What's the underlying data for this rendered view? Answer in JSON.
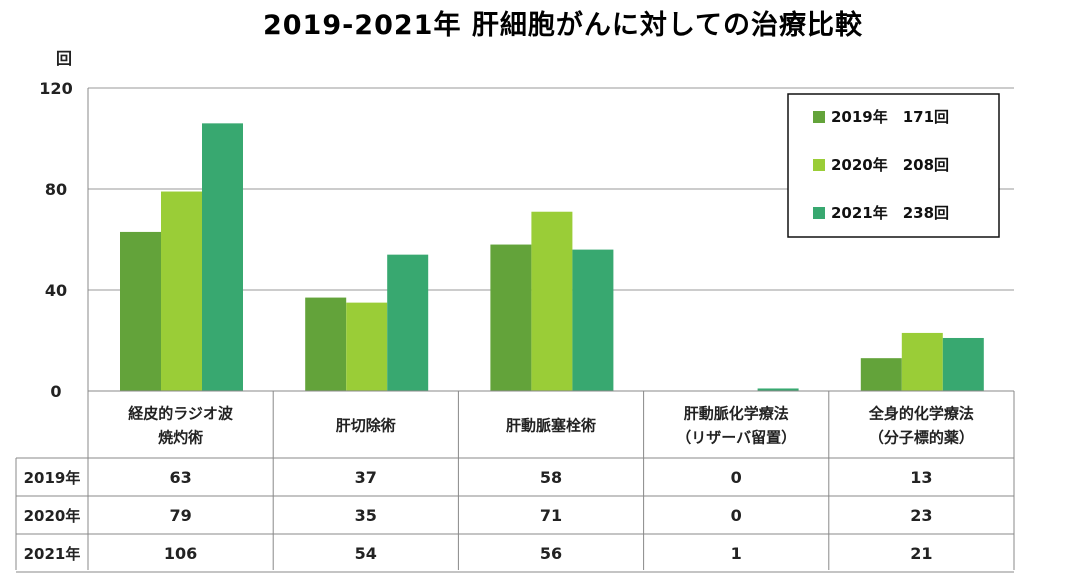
{
  "title": "2019-2021年 肝細胞がんに対しての治療比較",
  "colors": {
    "2019": "#63a33a",
    "2020": "#9acd37",
    "2021": "#38a870",
    "grid": "#999999",
    "axis": "#888888"
  },
  "chart_data": {
    "type": "bar",
    "title": "2019-2021年 肝細胞がんに対しての治療比較",
    "ylabel": "回",
    "ylim": [
      0,
      120
    ],
    "yticks": [
      "0",
      "40",
      "80",
      "120"
    ],
    "grid": true,
    "legend_position": "top-right",
    "categories": [
      [
        "経皮的ラジオ波",
        "焼灼術"
      ],
      [
        "肝切除術"
      ],
      [
        "肝動脈塞栓術"
      ],
      [
        "肝動脈化学療法",
        "（リザーバ留置）"
      ],
      [
        "全身的化学療法",
        "（分子標的薬）"
      ]
    ],
    "series": [
      {
        "name": "2019年",
        "legend": "2019年　171回",
        "values": [
          63,
          37,
          58,
          0,
          13
        ]
      },
      {
        "name": "2020年",
        "legend": "2020年　208回",
        "values": [
          79,
          35,
          71,
          0,
          23
        ]
      },
      {
        "name": "2021年",
        "legend": "2021年　238回",
        "values": [
          106,
          54,
          56,
          1,
          21
        ]
      }
    ]
  }
}
